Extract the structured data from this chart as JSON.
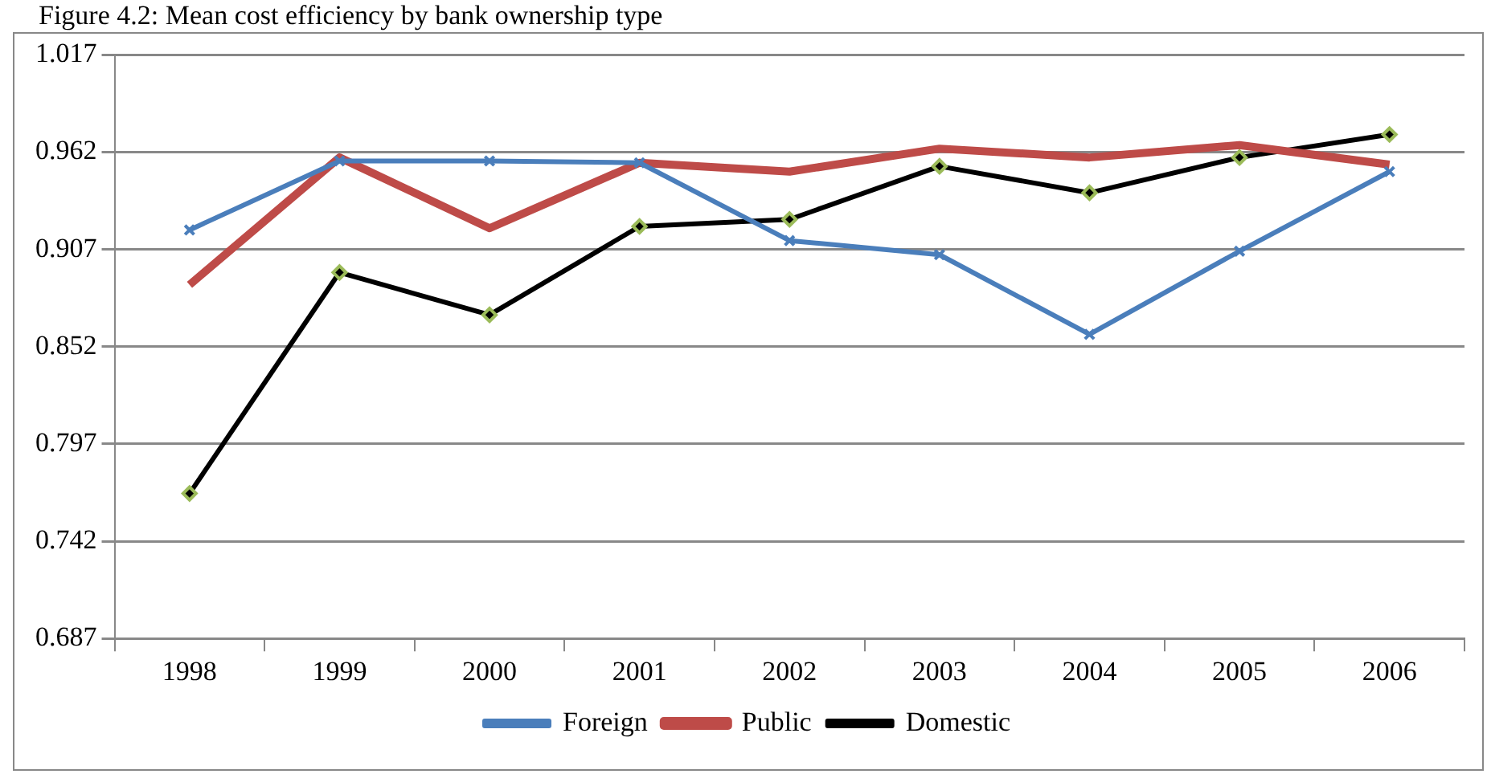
{
  "chart_data": {
    "type": "line",
    "title": "Figure 4.2: Mean cost efficiency by bank ownership type",
    "categories": [
      "1998",
      "1999",
      "2000",
      "2001",
      "2002",
      "2003",
      "2004",
      "2005",
      "2006"
    ],
    "series": [
      {
        "name": "Foreign",
        "color": "#4a7ebb",
        "marker": "cross",
        "values": [
          0.918,
          0.957,
          0.957,
          0.956,
          0.912,
          0.904,
          0.859,
          0.906,
          0.951
        ]
      },
      {
        "name": "Public",
        "color": "#be4b48",
        "marker": "none",
        "values": [
          0.887,
          0.959,
          0.919,
          0.956,
          0.951,
          0.964,
          0.959,
          0.966,
          0.955
        ]
      },
      {
        "name": "Domestic",
        "color": "#000000",
        "marker": "diamond",
        "values": [
          0.769,
          0.894,
          0.87,
          0.92,
          0.924,
          0.954,
          0.939,
          0.959,
          0.972
        ]
      }
    ],
    "ylim": [
      0.687,
      1.017
    ],
    "yticks": [
      0.687,
      0.742,
      0.797,
      0.852,
      0.907,
      0.962,
      1.017
    ],
    "grid": "y",
    "legend": "bottom",
    "line_style": "solid"
  }
}
